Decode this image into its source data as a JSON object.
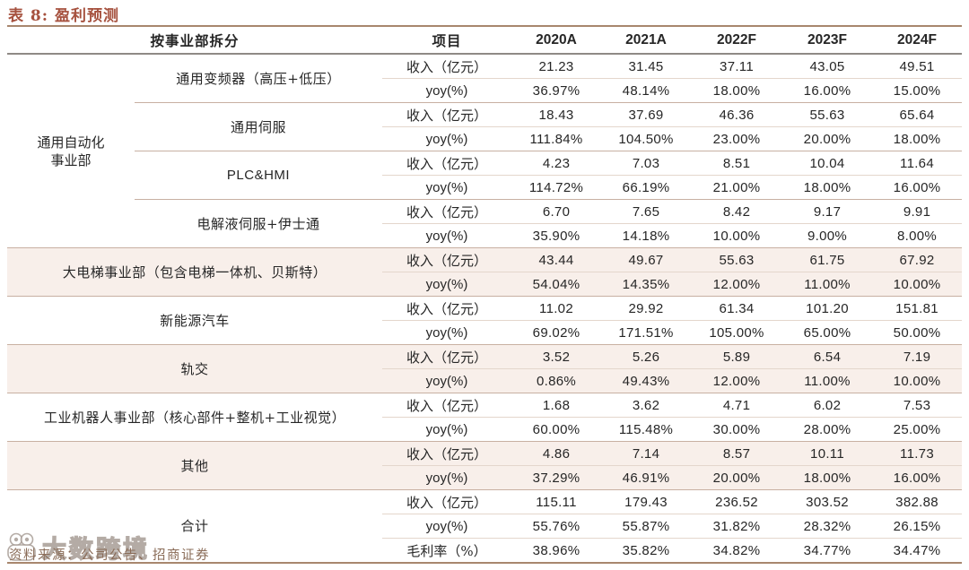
{
  "title": "表 8: 盈利预测",
  "colors": {
    "accent": "#A6513E",
    "rule": "#A8876E",
    "band": "#F8EFEA",
    "text": "#262626",
    "source": "#8A6C58",
    "linemed": "#C8B0A2",
    "linelight": "#E4D6CC",
    "headerline": "#8F8A85"
  },
  "header": {
    "split_label": "按事业部拆分",
    "item_label": "项目",
    "years": [
      "2020A",
      "2021A",
      "2022F",
      "2023F",
      "2024F"
    ]
  },
  "group_rowspan": 8,
  "sections": [
    {
      "group": "通用自动化事业部",
      "name": "通用变频器（高压+低压）",
      "merged": false,
      "shaded": false,
      "rows": [
        {
          "label": "收入（亿元）",
          "values": [
            "21.23",
            "31.45",
            "37.11",
            "43.05",
            "49.51"
          ]
        },
        {
          "label": "yoy(%)",
          "values": [
            "36.97%",
            "48.14%",
            "18.00%",
            "16.00%",
            "15.00%"
          ]
        }
      ]
    },
    {
      "name": "通用伺服",
      "merged": false,
      "shaded": false,
      "rows": [
        {
          "label": "收入（亿元）",
          "values": [
            "18.43",
            "37.69",
            "46.36",
            "55.63",
            "65.64"
          ]
        },
        {
          "label": "yoy(%)",
          "values": [
            "111.84%",
            "104.50%",
            "23.00%",
            "20.00%",
            "18.00%"
          ]
        }
      ]
    },
    {
      "name": "PLC&HMI",
      "merged": false,
      "shaded": false,
      "rows": [
        {
          "label": "收入（亿元）",
          "values": [
            "4.23",
            "7.03",
            "8.51",
            "10.04",
            "11.64"
          ]
        },
        {
          "label": "yoy(%)",
          "values": [
            "114.72%",
            "66.19%",
            "21.00%",
            "18.00%",
            "16.00%"
          ]
        }
      ]
    },
    {
      "name": "电解液伺服+伊士通",
      "merged": false,
      "shaded": false,
      "rows": [
        {
          "label": "收入（亿元）",
          "values": [
            "6.70",
            "7.65",
            "8.42",
            "9.17",
            "9.91"
          ]
        },
        {
          "label": "yoy(%)",
          "values": [
            "35.90%",
            "14.18%",
            "10.00%",
            "9.00%",
            "8.00%"
          ]
        }
      ]
    },
    {
      "name": "大电梯事业部（包含电梯一体机、贝斯特）",
      "merged": true,
      "shaded": true,
      "rows": [
        {
          "label": "收入（亿元）",
          "values": [
            "43.44",
            "49.67",
            "55.63",
            "61.75",
            "67.92"
          ]
        },
        {
          "label": "yoy(%)",
          "values": [
            "54.04%",
            "14.35%",
            "12.00%",
            "11.00%",
            "10.00%"
          ]
        }
      ]
    },
    {
      "name": "新能源汽车",
      "merged": true,
      "shaded": false,
      "rows": [
        {
          "label": "收入（亿元）",
          "values": [
            "11.02",
            "29.92",
            "61.34",
            "101.20",
            "151.81"
          ]
        },
        {
          "label": "yoy(%)",
          "values": [
            "69.02%",
            "171.51%",
            "105.00%",
            "65.00%",
            "50.00%"
          ]
        }
      ]
    },
    {
      "name": "轨交",
      "merged": true,
      "shaded": true,
      "rows": [
        {
          "label": "收入（亿元）",
          "values": [
            "3.52",
            "5.26",
            "5.89",
            "6.54",
            "7.19"
          ]
        },
        {
          "label": "yoy(%)",
          "values": [
            "0.86%",
            "49.43%",
            "12.00%",
            "11.00%",
            "10.00%"
          ]
        }
      ]
    },
    {
      "name": "工业机器人事业部（核心部件+整机+工业视觉）",
      "merged": true,
      "shaded": false,
      "rows": [
        {
          "label": "收入（亿元）",
          "values": [
            "1.68",
            "3.62",
            "4.71",
            "6.02",
            "7.53"
          ]
        },
        {
          "label": "yoy(%)",
          "values": [
            "60.00%",
            "115.48%",
            "30.00%",
            "28.00%",
            "25.00%"
          ]
        }
      ]
    },
    {
      "name": "其他",
      "merged": true,
      "shaded": true,
      "rows": [
        {
          "label": "收入（亿元）",
          "values": [
            "4.86",
            "7.14",
            "8.57",
            "10.11",
            "11.73"
          ]
        },
        {
          "label": "yoy(%)",
          "values": [
            "37.29%",
            "46.91%",
            "20.00%",
            "18.00%",
            "16.00%"
          ]
        }
      ]
    },
    {
      "name": "合计",
      "merged": true,
      "shaded": false,
      "rows": [
        {
          "label": "收入（亿元）",
          "values": [
            "115.11",
            "179.43",
            "236.52",
            "303.52",
            "382.88"
          ]
        },
        {
          "label": "yoy(%)",
          "values": [
            "55.76%",
            "55.87%",
            "31.82%",
            "28.32%",
            "26.15%"
          ]
        },
        {
          "label": "毛利率（%）",
          "values": [
            "38.96%",
            "35.82%",
            "34.82%",
            "34.77%",
            "34.47%"
          ]
        }
      ]
    }
  ],
  "footer": {
    "source": "资料来源：公司公告、招商证券",
    "watermark_text": "大数跨境"
  }
}
